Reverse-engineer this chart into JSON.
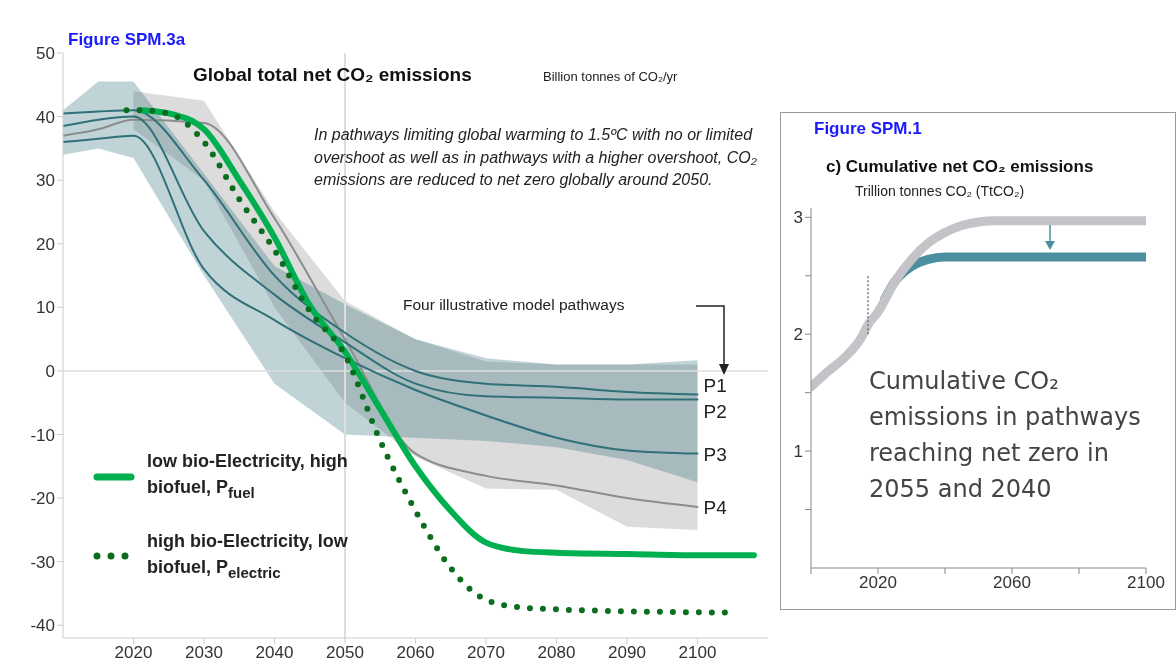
{
  "chart_data": [
    {
      "type": "line",
      "title": "Global total net CO₂ emissions",
      "ylabel": "Billion tonnes of CO₂/yr",
      "annotations": [
        "Figure SPM.3a",
        "In pathways limiting global warming to 1.5ºC with no or limited overshoot as well as in pathways with a higher overshoot, CO₂ emissions are reduced to net zero globally around 2050.",
        "Four illustrative model pathways"
      ],
      "xlim": [
        2010,
        2110
      ],
      "xticks": [
        2020,
        2030,
        2040,
        2050,
        2060,
        2070,
        2080,
        2090,
        2100
      ],
      "ylim": [
        -42,
        50
      ],
      "yticks": [
        -40,
        -30,
        -20,
        -10,
        0,
        10,
        20,
        30,
        40,
        50
      ],
      "legend": "bottom left",
      "ref_lines": [
        {
          "axis": "x",
          "value": 2050,
          "color": "#dddddd"
        },
        {
          "axis": "y",
          "value": 0,
          "color": "#dddddd"
        }
      ],
      "series": [
        {
          "name": "P4",
          "color": "#8c8c8c",
          "x": [
            2010,
            2015,
            2020,
            2030,
            2040,
            2050,
            2060,
            2070,
            2080,
            2090,
            2100
          ],
          "values": [
            37,
            38,
            39.5,
            39,
            24,
            5,
            -13,
            -16.5,
            -18,
            -20,
            -21.4
          ],
          "lower": [
            null,
            null,
            38,
            30,
            10,
            -5,
            -13.5,
            -18.5,
            -18.7,
            -24.5,
            -25
          ],
          "upper": [
            null,
            null,
            44,
            42.5,
            25,
            11,
            5,
            1.5,
            1,
            1,
            1
          ]
        },
        {
          "name": "P1",
          "color": "#2f7079",
          "x": [
            2010,
            2015,
            2020,
            2030,
            2040,
            2050,
            2060,
            2070,
            2080,
            2090,
            2100
          ],
          "values": [
            40.5,
            40.8,
            41,
            30,
            15,
            6,
            0,
            -2,
            -2.5,
            -3.3,
            -3.7
          ],
          "lower": [
            34,
            35,
            33.5,
            15,
            -2,
            -10,
            -10.5,
            -11,
            -12,
            -14,
            -17.5
          ],
          "upper": [
            41,
            45.5,
            45.5,
            31,
            16.5,
            10.5,
            5,
            2,
            1,
            1,
            1.7
          ]
        },
        {
          "name": "P2",
          "color": "#2f7079",
          "x": [
            2010,
            2015,
            2020,
            2030,
            2040,
            2050,
            2060,
            2070,
            2080,
            2090,
            2100
          ],
          "values": [
            38.5,
            39.5,
            40,
            22,
            12,
            4.5,
            -2,
            -4,
            -4.2,
            -4.5,
            -4.5
          ]
        },
        {
          "name": "P3",
          "color": "#2f7079",
          "x": [
            2010,
            2015,
            2020,
            2030,
            2040,
            2050,
            2060,
            2070,
            2080,
            2090,
            2100
          ],
          "values": [
            36,
            36.5,
            37,
            16,
            8,
            2,
            -3,
            -7,
            -10.5,
            -12.5,
            -13
          ]
        },
        {
          "name": "low bio-Electricity, high biofuel, P$_{fuel}$",
          "color": "#00b050",
          "line_style": "solid",
          "x": [
            2021,
            2025,
            2030,
            2035,
            2040,
            2045,
            2050,
            2055,
            2060,
            2065,
            2070,
            2075,
            2080,
            2090,
            2100,
            2108
          ],
          "values": [
            41,
            40.5,
            38,
            30,
            21,
            10.3,
            3,
            -6,
            -15,
            -22,
            -27,
            -28.3,
            -28.6,
            -28.8,
            -29,
            -29
          ]
        },
        {
          "name": "high bio-Electricity, low biofuel, P$_{electric}$",
          "color": "#0a6e1e",
          "line_style": "dotted",
          "x": [
            2019,
            2021,
            2025,
            2030,
            2035,
            2040,
            2045,
            2050,
            2055,
            2060,
            2065,
            2070,
            2075,
            2080,
            2090,
            2104
          ],
          "values": [
            41,
            41,
            40.5,
            36,
            27,
            19,
            9.4,
            2.5,
            -11,
            -22,
            -31,
            -36,
            -37.2,
            -37.5,
            -37.8,
            -38
          ]
        }
      ]
    },
    {
      "type": "line",
      "title": "c) Cumulative net CO₂ emissions",
      "ylabel": "Trillion tonnes CO₂ (TtCO₂)",
      "annotations": [
        "Figure SPM.1",
        "Cumulative CO₂ emissions in pathways reaching net zero in 2055 and 2040"
      ],
      "xlim": [
        2000,
        2100
      ],
      "xticks": [
        {
          "value": 2000,
          "label": null
        },
        2020,
        {
          "value": 2040,
          "label": null
        },
        2060,
        {
          "value": 2080,
          "label": null
        },
        2100
      ],
      "ylim": [
        0,
        3.08
      ],
      "yticks": [
        {
          "value": 0.5,
          "label": null
        },
        1,
        {
          "value": 1.5,
          "label": null
        },
        2,
        {
          "value": 2.5,
          "label": null
        },
        3
      ],
      "series": [
        {
          "color": "#4b8fa0",
          "x": [
            2022,
            2025,
            2030,
            2035,
            2040,
            2100
          ],
          "values": [
            2.3,
            2.45,
            2.58,
            2.64,
            2.66,
            2.66
          ]
        },
        {
          "color": "#c3c3c8",
          "x": [
            2000,
            2005,
            2010,
            2015,
            2017,
            2020,
            2025,
            2030,
            2035,
            2040,
            2045,
            2050,
            2055,
            2100
          ],
          "values": [
            1.55,
            1.68,
            1.8,
            1.97,
            2.08,
            2.19,
            2.45,
            2.64,
            2.78,
            2.87,
            2.93,
            2.96,
            2.97,
            2.97
          ],
          "errors": [
            null,
            null,
            null,
            null,
            [
              2.0,
              2.5
            ],
            null,
            null,
            null,
            null,
            null,
            null,
            null,
            null,
            null
          ]
        }
      ]
    }
  ]
}
